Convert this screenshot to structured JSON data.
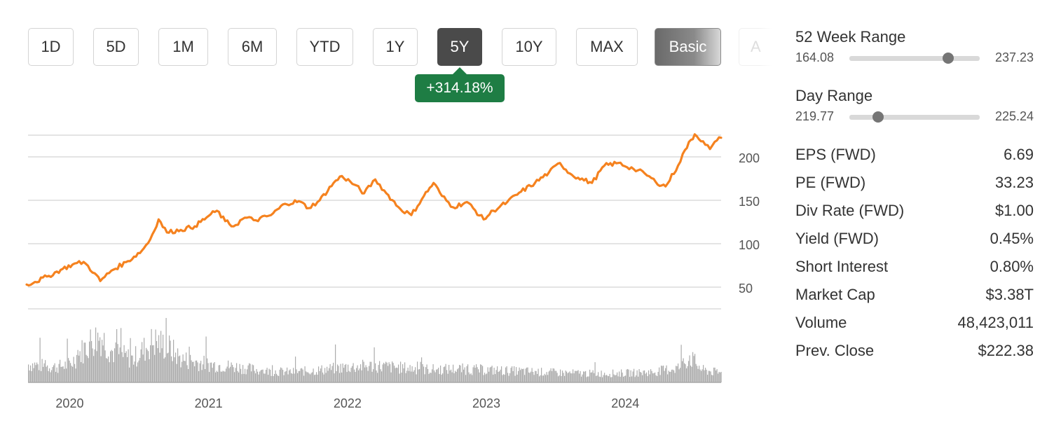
{
  "toolbar": {
    "ranges": [
      {
        "label": "1D",
        "state": "normal"
      },
      {
        "label": "5D",
        "state": "normal"
      },
      {
        "label": "1M",
        "state": "normal"
      },
      {
        "label": "6M",
        "state": "normal"
      },
      {
        "label": "YTD",
        "state": "normal"
      },
      {
        "label": "1Y",
        "state": "normal"
      },
      {
        "label": "5Y",
        "state": "selected"
      },
      {
        "label": "10Y",
        "state": "normal"
      },
      {
        "label": "MAX",
        "state": "normal"
      }
    ],
    "mode_label": "Basic",
    "advanced_label_partial": "A"
  },
  "change_badge": {
    "text": "+314.18%",
    "color": "#1e7d44"
  },
  "colors": {
    "price_line": "#f5821f",
    "volume_bars": "#ababab",
    "selected_button": "#4a4a4a"
  },
  "chart_data": {
    "type": "line",
    "x_tick_labels": [
      "2020",
      "2021",
      "2022",
      "2023",
      "2024"
    ],
    "y_tick_labels": [
      "200",
      "150",
      "100",
      "50"
    ],
    "ylim": [
      25,
      225
    ],
    "price_series": [
      {
        "x": 2019.69,
        "y": 53
      },
      {
        "x": 2019.75,
        "y": 56
      },
      {
        "x": 2019.85,
        "y": 63
      },
      {
        "x": 2019.95,
        "y": 71
      },
      {
        "x": 2020.02,
        "y": 76
      },
      {
        "x": 2020.1,
        "y": 79
      },
      {
        "x": 2020.18,
        "y": 66
      },
      {
        "x": 2020.22,
        "y": 57
      },
      {
        "x": 2020.3,
        "y": 69
      },
      {
        "x": 2020.42,
        "y": 80
      },
      {
        "x": 2020.52,
        "y": 92
      },
      {
        "x": 2020.58,
        "y": 105
      },
      {
        "x": 2020.64,
        "y": 128
      },
      {
        "x": 2020.7,
        "y": 113
      },
      {
        "x": 2020.8,
        "y": 116
      },
      {
        "x": 2020.9,
        "y": 120
      },
      {
        "x": 2021.0,
        "y": 132
      },
      {
        "x": 2021.06,
        "y": 138
      },
      {
        "x": 2021.12,
        "y": 126
      },
      {
        "x": 2021.18,
        "y": 120
      },
      {
        "x": 2021.26,
        "y": 130
      },
      {
        "x": 2021.34,
        "y": 127
      },
      {
        "x": 2021.45,
        "y": 133
      },
      {
        "x": 2021.55,
        "y": 146
      },
      {
        "x": 2021.65,
        "y": 149
      },
      {
        "x": 2021.72,
        "y": 141
      },
      {
        "x": 2021.8,
        "y": 150
      },
      {
        "x": 2021.9,
        "y": 170
      },
      {
        "x": 2021.96,
        "y": 178
      },
      {
        "x": 2022.05,
        "y": 168
      },
      {
        "x": 2022.12,
        "y": 158
      },
      {
        "x": 2022.2,
        "y": 174
      },
      {
        "x": 2022.28,
        "y": 158
      },
      {
        "x": 2022.38,
        "y": 140
      },
      {
        "x": 2022.46,
        "y": 133
      },
      {
        "x": 2022.55,
        "y": 155
      },
      {
        "x": 2022.62,
        "y": 170
      },
      {
        "x": 2022.68,
        "y": 155
      },
      {
        "x": 2022.76,
        "y": 142
      },
      {
        "x": 2022.86,
        "y": 148
      },
      {
        "x": 2022.98,
        "y": 128
      },
      {
        "x": 2023.05,
        "y": 138
      },
      {
        "x": 2023.15,
        "y": 148
      },
      {
        "x": 2023.25,
        "y": 160
      },
      {
        "x": 2023.35,
        "y": 170
      },
      {
        "x": 2023.45,
        "y": 182
      },
      {
        "x": 2023.53,
        "y": 193
      },
      {
        "x": 2023.6,
        "y": 181
      },
      {
        "x": 2023.66,
        "y": 176
      },
      {
        "x": 2023.76,
        "y": 170
      },
      {
        "x": 2023.85,
        "y": 190
      },
      {
        "x": 2023.95,
        "y": 193
      },
      {
        "x": 2024.06,
        "y": 186
      },
      {
        "x": 2024.14,
        "y": 181
      },
      {
        "x": 2024.22,
        "y": 171
      },
      {
        "x": 2024.29,
        "y": 166
      },
      {
        "x": 2024.38,
        "y": 190
      },
      {
        "x": 2024.43,
        "y": 208
      },
      {
        "x": 2024.5,
        "y": 226
      },
      {
        "x": 2024.56,
        "y": 218
      },
      {
        "x": 2024.61,
        "y": 209
      },
      {
        "x": 2024.66,
        "y": 219
      },
      {
        "x": 2024.69,
        "y": 222
      }
    ],
    "volume_series": [
      {
        "x": 2019.7,
        "v": 35
      },
      {
        "x": 2019.9,
        "v": 30
      },
      {
        "x": 2020.0,
        "v": 35
      },
      {
        "x": 2020.15,
        "v": 80
      },
      {
        "x": 2020.22,
        "v": 90
      },
      {
        "x": 2020.3,
        "v": 60
      },
      {
        "x": 2020.45,
        "v": 45
      },
      {
        "x": 2020.6,
        "v": 80
      },
      {
        "x": 2020.7,
        "v": 70
      },
      {
        "x": 2020.8,
        "v": 45
      },
      {
        "x": 2021.0,
        "v": 35
      },
      {
        "x": 2021.2,
        "v": 30
      },
      {
        "x": 2021.4,
        "v": 22
      },
      {
        "x": 2021.6,
        "v": 20
      },
      {
        "x": 2021.8,
        "v": 24
      },
      {
        "x": 2022.0,
        "v": 30
      },
      {
        "x": 2022.2,
        "v": 32
      },
      {
        "x": 2022.4,
        "v": 28
      },
      {
        "x": 2022.6,
        "v": 25
      },
      {
        "x": 2022.8,
        "v": 26
      },
      {
        "x": 2023.0,
        "v": 24
      },
      {
        "x": 2023.2,
        "v": 22
      },
      {
        "x": 2023.4,
        "v": 20
      },
      {
        "x": 2023.6,
        "v": 18
      },
      {
        "x": 2023.8,
        "v": 17
      },
      {
        "x": 2024.0,
        "v": 18
      },
      {
        "x": 2024.2,
        "v": 20
      },
      {
        "x": 2024.4,
        "v": 30
      },
      {
        "x": 2024.46,
        "v": 50
      },
      {
        "x": 2024.55,
        "v": 24
      },
      {
        "x": 2024.69,
        "v": 18
      }
    ]
  },
  "stats": {
    "week52": {
      "label": "52 Week Range",
      "low": "164.08",
      "high": "237.23",
      "position": 0.76
    },
    "day": {
      "label": "Day Range",
      "low": "219.77",
      "high": "225.24",
      "position": 0.22
    },
    "rows": [
      {
        "label": "EPS (FWD)",
        "value": "6.69"
      },
      {
        "label": "PE (FWD)",
        "value": "33.23"
      },
      {
        "label": "Div Rate (FWD)",
        "value": "$1.00"
      },
      {
        "label": "Yield (FWD)",
        "value": "0.45%"
      },
      {
        "label": "Short Interest",
        "value": "0.80%"
      },
      {
        "label": "Market Cap",
        "value": "$3.38T"
      },
      {
        "label": "Volume",
        "value": "48,423,011"
      },
      {
        "label": "Prev. Close",
        "value": "$222.38"
      }
    ]
  }
}
